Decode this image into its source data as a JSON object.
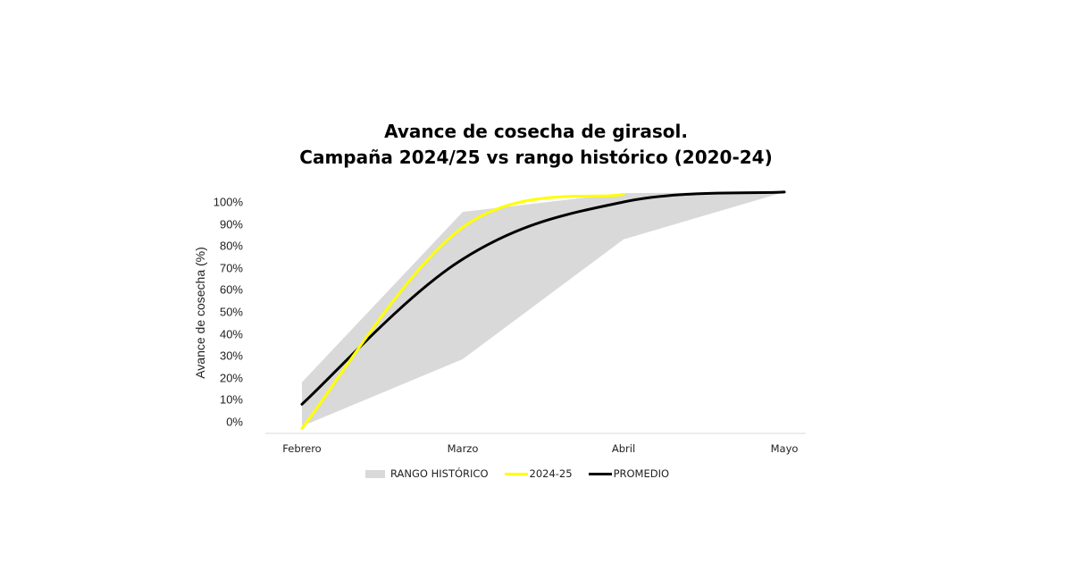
{
  "chart_data": {
    "type": "line",
    "title": "Avance de cosecha de girasol.",
    "subtitle": "Campaña 2024/25 vs rango histórico (2020-24)",
    "xlabel": "",
    "ylabel": "Avance de cosecha (%)",
    "categories": [
      "Febrero",
      "Marzo",
      "Abril",
      "Mayo"
    ],
    "y_ticks": [
      "0%",
      "10%",
      "20%",
      "30%",
      "40%",
      "50%",
      "60%",
      "70%",
      "80%",
      "90%",
      "100%"
    ],
    "ylim": [
      0,
      100
    ],
    "grid": false,
    "legend_position": "bottom",
    "series": [
      {
        "name": "RANGO HISTÓRICO",
        "type": "area-range",
        "color": "#d9d9d9",
        "lower": [
          -2,
          28.5,
          83,
          104.5
        ],
        "upper": [
          18,
          95.5,
          104,
          104.5
        ]
      },
      {
        "name": "2024-25",
        "type": "line",
        "color": "#ffff00",
        "values": [
          -3,
          88.5,
          103.5,
          null
        ]
      },
      {
        "name": "PROMEDIO",
        "type": "line",
        "color": "#000000",
        "values": [
          8,
          74,
          100,
          104.5
        ]
      }
    ]
  },
  "legend": {
    "range_label": "RANGO HISTÓRICO",
    "current_label": "2024-25",
    "average_label": "PROMEDIO"
  },
  "colors": {
    "range": "#d9d9d9",
    "current": "#ffff00",
    "average": "#000000"
  }
}
